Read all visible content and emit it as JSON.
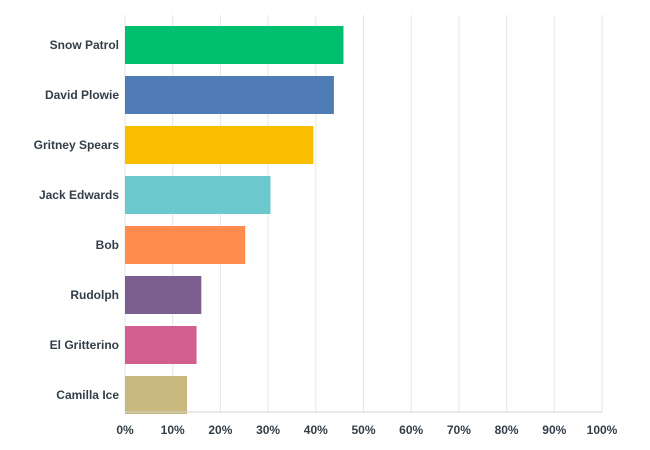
{
  "chart_data": {
    "type": "bar",
    "orientation": "horizontal",
    "title": "",
    "xlabel": "",
    "ylabel": "",
    "xlim": [
      0,
      100
    ],
    "grid": true,
    "legend": "none",
    "categories": [
      "Snow Patrol",
      "David Plowie",
      "Gritney Spears",
      "Jack Edwards",
      "Bob",
      "Rudolph",
      "El Gritterino",
      "Camilla Ice"
    ],
    "values": [
      45.8,
      43.8,
      39.5,
      30.5,
      25.2,
      16.0,
      15.0,
      13.0
    ],
    "colors": [
      "#00bf6f",
      "#507cb6",
      "#f9be00",
      "#6bc8cd",
      "#ff8b4f",
      "#7d5e90",
      "#d25f90",
      "#c9b97e"
    ],
    "ticks": [
      "0%",
      "10%",
      "20%",
      "30%",
      "40%",
      "50%",
      "60%",
      "70%",
      "80%",
      "90%",
      "100%"
    ]
  }
}
